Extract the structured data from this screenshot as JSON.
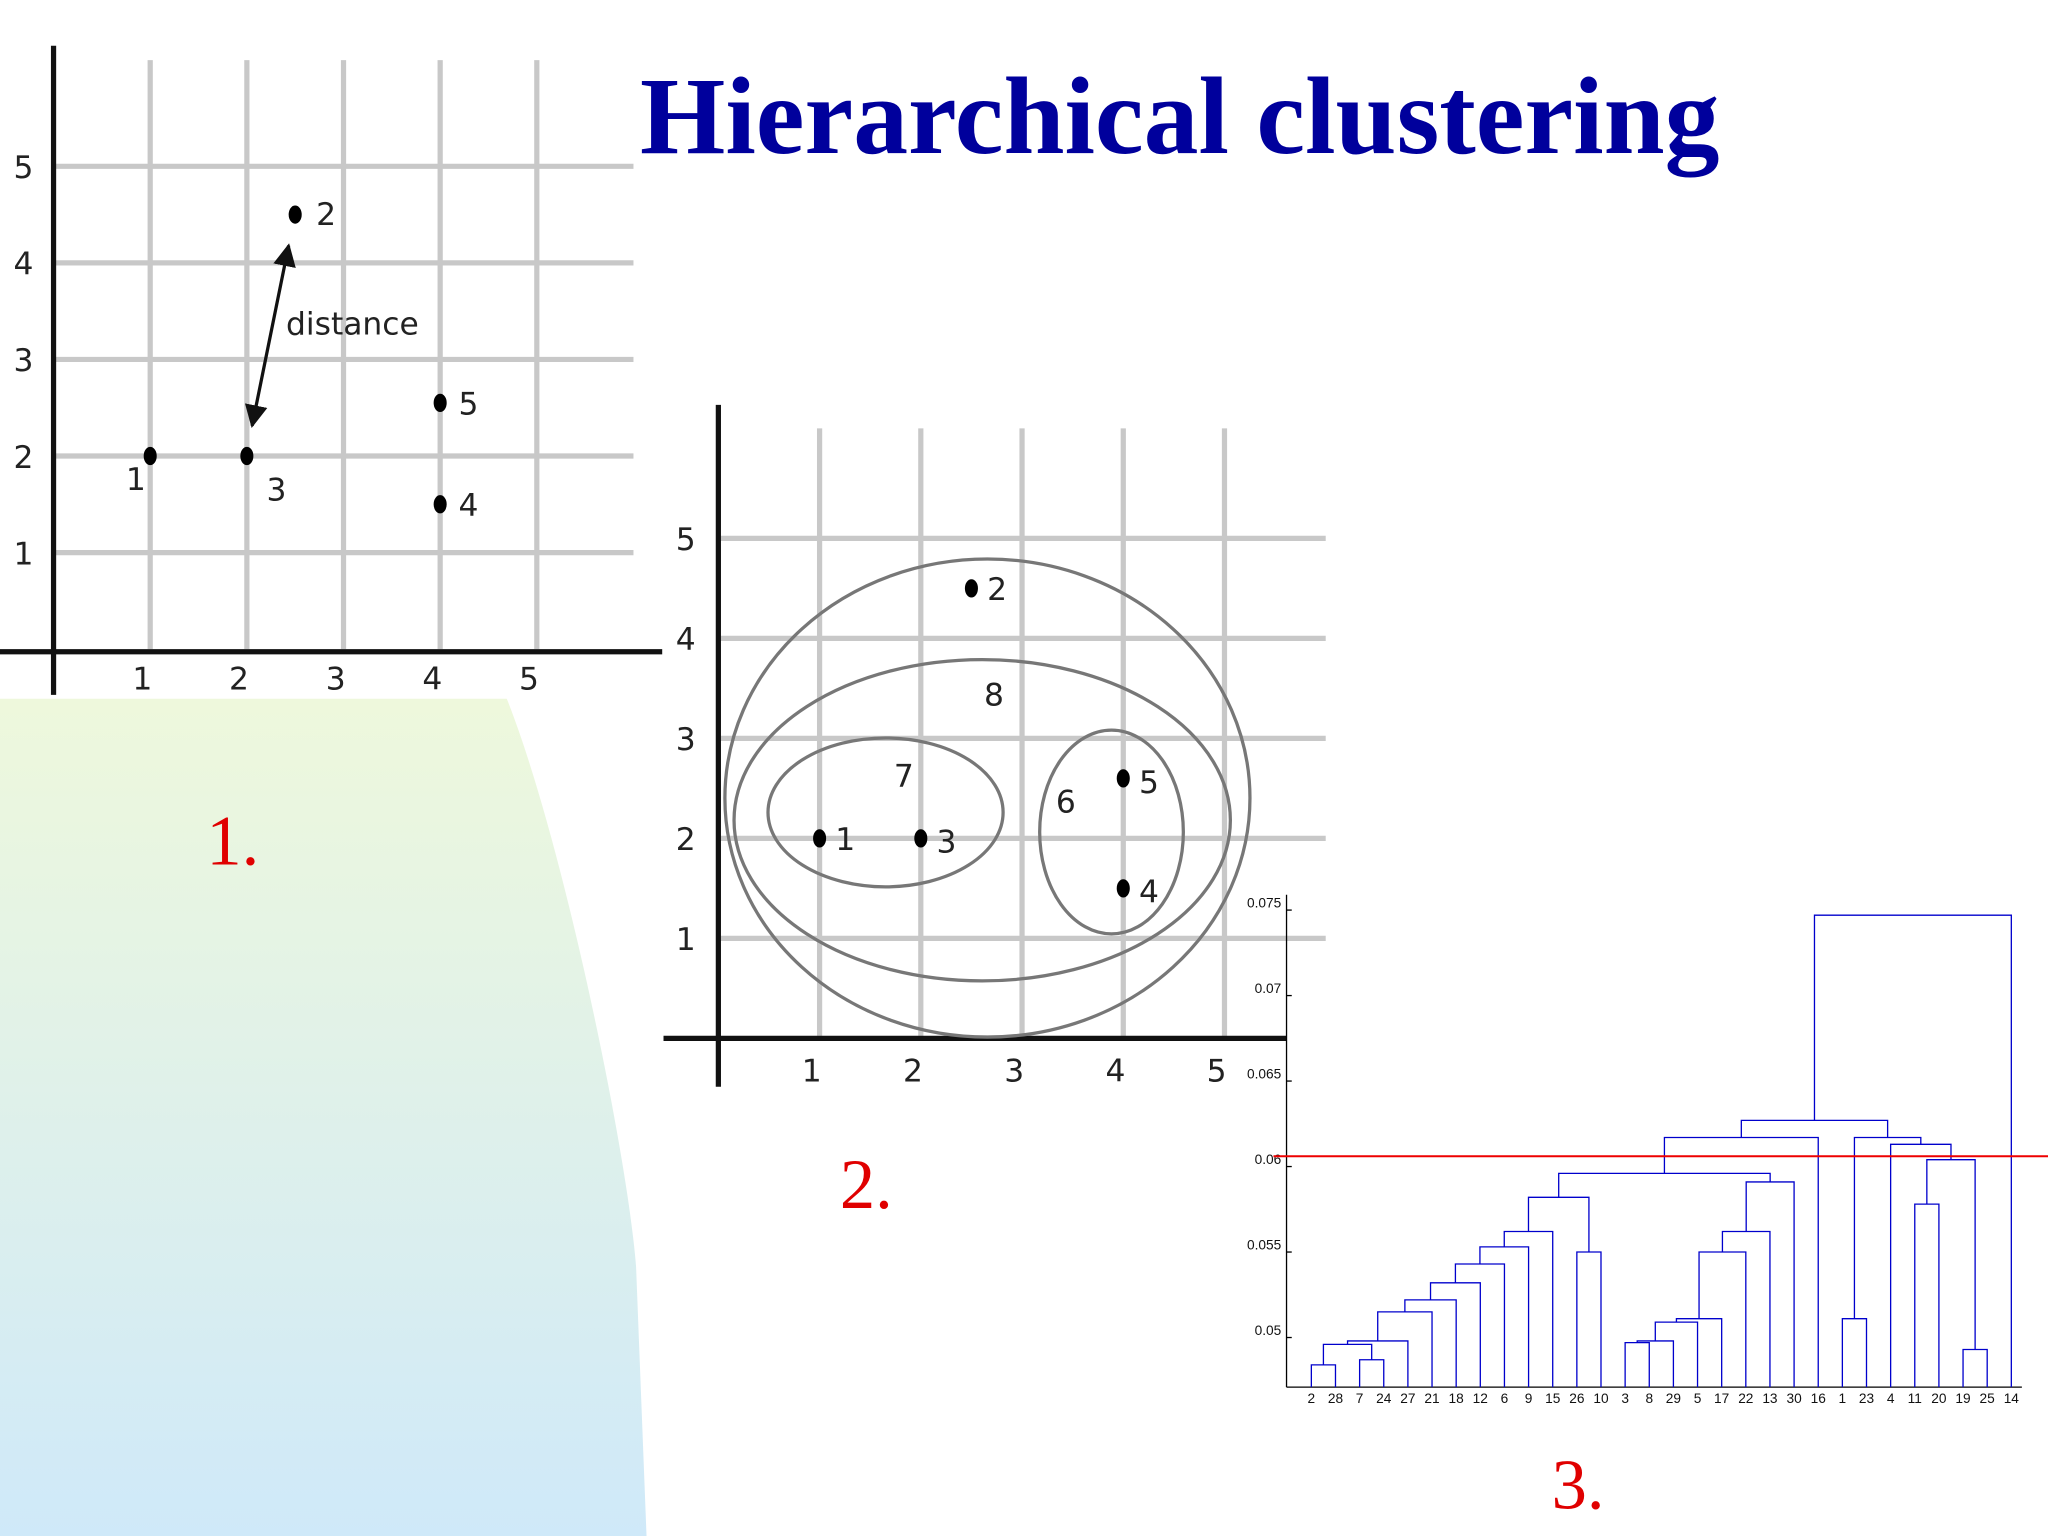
{
  "title": "Hierarchical clustering",
  "panel_labels": [
    "1.",
    "2.",
    "3."
  ],
  "chart_data": [
    {
      "type": "scatter",
      "annotation": "distance",
      "x": [
        1,
        2.5,
        2,
        4,
        4
      ],
      "y": [
        2,
        4.5,
        2,
        1.5,
        2.55
      ],
      "labels": [
        "1",
        "2",
        "3",
        "4",
        "5"
      ],
      "xlim": [
        0,
        6
      ],
      "ylim": [
        0,
        6.1
      ],
      "xticks": [
        1,
        2,
        3,
        4,
        5
      ],
      "yticks": [
        1,
        2,
        3,
        4,
        5
      ],
      "grid": true,
      "color": "#000000"
    },
    {
      "type": "scatter",
      "cluster_labels": [
        "7",
        "6",
        "8"
      ],
      "x": [
        1,
        2.5,
        2,
        4,
        4
      ],
      "y": [
        2,
        4.5,
        2,
        1.5,
        2.6
      ],
      "labels": [
        "1",
        "2",
        "3",
        "4",
        "5"
      ],
      "xlim": [
        0,
        6
      ],
      "ylim": [
        0,
        6.1
      ],
      "xticks": [
        1,
        2,
        3,
        4,
        5
      ],
      "yticks": [
        1,
        2,
        3,
        4,
        5
      ],
      "grid": true,
      "color": "#000000"
    },
    {
      "type": "dendrogram",
      "leaves": [
        "2",
        "28",
        "7",
        "24",
        "27",
        "21",
        "18",
        "12",
        "6",
        "9",
        "15",
        "26",
        "10",
        "3",
        "8",
        "29",
        "5",
        "17",
        "22",
        "13",
        "30",
        "16",
        "1",
        "23",
        "4",
        "11",
        "20",
        "19",
        "25",
        "14"
      ],
      "merges": [
        {
          "children": [
            0,
            1
          ],
          "height": 0.0484
        },
        {
          "children": [
            2,
            3
          ],
          "height": 0.0487
        },
        {
          "children": [
            30,
            31
          ],
          "height": 0.0496
        },
        {
          "children": [
            32,
            4
          ],
          "height": 0.0498
        },
        {
          "children": [
            33,
            5
          ],
          "height": 0.0515
        },
        {
          "children": [
            34,
            6
          ],
          "height": 0.0522
        },
        {
          "children": [
            35,
            7
          ],
          "height": 0.0532
        },
        {
          "children": [
            36,
            8
          ],
          "height": 0.0543
        },
        {
          "children": [
            37,
            9
          ],
          "height": 0.0553
        },
        {
          "children": [
            38,
            10
          ],
          "height": 0.0562
        },
        {
          "children": [
            11,
            12
          ],
          "height": 0.055
        },
        {
          "children": [
            39,
            40
          ],
          "height": 0.0582
        },
        {
          "children": [
            13,
            14
          ],
          "height": 0.0497
        },
        {
          "children": [
            42,
            15
          ],
          "height": 0.0498
        },
        {
          "children": [
            43,
            16
          ],
          "height": 0.0509
        },
        {
          "children": [
            44,
            17
          ],
          "height": 0.0511
        },
        {
          "children": [
            45,
            18
          ],
          "height": 0.055
        },
        {
          "children": [
            46,
            19
          ],
          "height": 0.0562
        },
        {
          "children": [
            47,
            20
          ],
          "height": 0.0591
        },
        {
          "children": [
            41,
            48
          ],
          "height": 0.0596
        },
        {
          "children": [
            49,
            21
          ],
          "height": 0.0617
        },
        {
          "children": [
            22,
            23
          ],
          "height": 0.0511
        },
        {
          "children": [
            27,
            28
          ],
          "height": 0.0493
        },
        {
          "children": [
            25,
            26
          ],
          "height": 0.0578
        },
        {
          "children": [
            53,
            52
          ],
          "height": 0.0604
        },
        {
          "children": [
            24,
            54
          ],
          "height": 0.0613
        },
        {
          "children": [
            51,
            55
          ],
          "height": 0.0617
        },
        {
          "children": [
            50,
            56
          ],
          "height": 0.0627
        },
        {
          "children": [
            57,
            29
          ],
          "height": 0.0747
        }
      ],
      "ylim": [
        0.0471,
        0.0759
      ],
      "yticks": [
        0.05,
        0.055,
        0.06,
        0.065,
        0.07,
        0.075
      ],
      "color": "#0000cc",
      "threshold": 0.0606,
      "threshold_color": "#ee0000"
    }
  ]
}
